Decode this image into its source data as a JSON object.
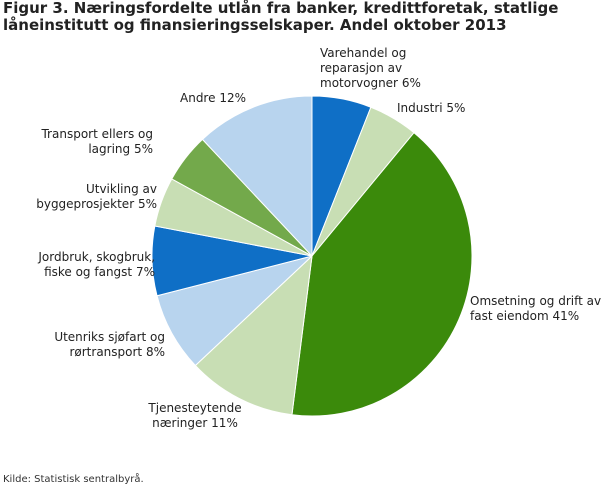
{
  "chart_data": {
    "type": "pie",
    "title": "Figur 3. Næringsfordelte utlån fra banker, kredittforetak, statlige låneinstitutt og finansieringsselskaper. Andel oktober 2013",
    "categories": [
      "Varehandel og reparasjon av motorvogner",
      "Industri",
      "Omsetning og drift av fast eiendom",
      "Tjenesteytende næringer",
      "Utenriks sjøfart og rørtransport",
      "Jordbruk, skogbruk, fiske og fangst",
      "Utvikling av byggeprosjekter",
      "Transport ellers og lagring",
      "Andre"
    ],
    "values": [
      6,
      5,
      41,
      11,
      8,
      7,
      5,
      5,
      12
    ],
    "value_labels": [
      "6%",
      "5%",
      "41%",
      "11%",
      "8%",
      "7%",
      "5%",
      "5%",
      "12%"
    ],
    "colors": [
      "#0f6fc6",
      "#c8deb4",
      "#3b8a0b",
      "#c8deb4",
      "#b8d4ee",
      "#0f6fc6",
      "#c8deb4",
      "#73a94b",
      "#b8d4ee"
    ],
    "source": "Kilde: Statistisk sentralbyrå."
  }
}
